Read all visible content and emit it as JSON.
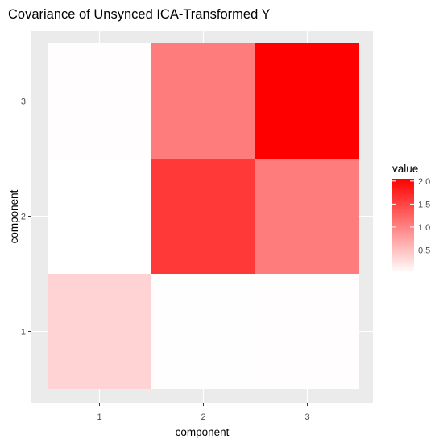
{
  "chart_data": {
    "type": "heatmap",
    "title": "Covariance of Unsynced ICA-Transformed Y",
    "xlabel": "component",
    "ylabel": "component",
    "x_categories": [
      "1",
      "2",
      "3"
    ],
    "y_categories": [
      "1",
      "2",
      "3"
    ],
    "cells": [
      {
        "x": "1",
        "y": "1",
        "value": 0.35
      },
      {
        "x": "2",
        "y": "1",
        "value": 0.01
      },
      {
        "x": "3",
        "y": "1",
        "value": 0.02
      },
      {
        "x": "1",
        "y": "2",
        "value": 0.0
      },
      {
        "x": "2",
        "y": "2",
        "value": 1.6
      },
      {
        "x": "3",
        "y": "2",
        "value": 1.05
      },
      {
        "x": "1",
        "y": "3",
        "value": 0.02
      },
      {
        "x": "2",
        "y": "3",
        "value": 1.05
      },
      {
        "x": "3",
        "y": "3",
        "value": 2.05
      }
    ],
    "legend": {
      "title": "value",
      "ticks": [
        {
          "value": 0.5,
          "label": "0.5"
        },
        {
          "value": 1.0,
          "label": "1.0"
        },
        {
          "value": 1.5,
          "label": "1.5"
        },
        {
          "value": 2.0,
          "label": "2.0"
        }
      ],
      "range": [
        0.0,
        2.05
      ],
      "placement": "right"
    },
    "color_scale": {
      "low": "#ffffff",
      "high": "#ff0000"
    },
    "panel_background": "#ebebeb",
    "grid": true
  }
}
